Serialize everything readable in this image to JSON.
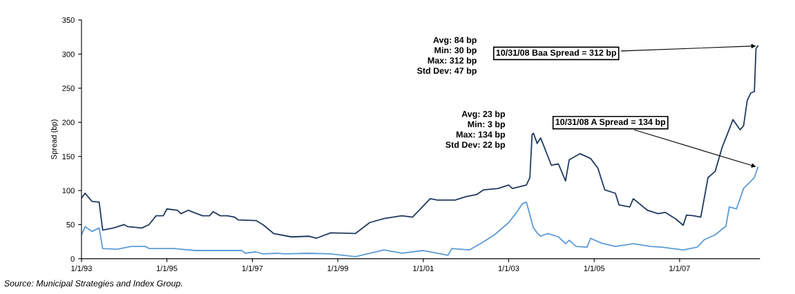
{
  "chart_data": {
    "type": "line",
    "ylabel": "Spread (bp)",
    "ylim": [
      0,
      350
    ],
    "yticks": [
      0,
      50,
      100,
      150,
      200,
      250,
      300,
      350
    ],
    "xlim": [
      "1993-01-01",
      "2008-11-15"
    ],
    "xticks": [
      {
        "value": "1993-01-01",
        "label": "1/1/93"
      },
      {
        "value": "1995-01-01",
        "label": "1/1/95"
      },
      {
        "value": "1997-01-01",
        "label": "1/1/97"
      },
      {
        "value": "1999-01-01",
        "label": "1/1/99"
      },
      {
        "value": "2001-01-01",
        "label": "1/1/01"
      },
      {
        "value": "2003-01-01",
        "label": "1/1/03"
      },
      {
        "value": "2005-01-01",
        "label": "1/1/05"
      },
      {
        "value": "2007-01-01",
        "label": "1/1/07"
      }
    ],
    "grid": false,
    "legend": false,
    "series": [
      {
        "color": "#1f3a5f",
        "x": [
          "1993-01",
          "1993-02",
          "1993-04",
          "1993-06",
          "1993-07",
          "1993-10",
          "1994-01",
          "1994-02",
          "1994-06",
          "1994-08",
          "1994-10",
          "1994-12",
          "1995-01",
          "1995-04",
          "1995-05",
          "1995-07",
          "1995-11",
          "1996-01",
          "1996-02",
          "1996-04",
          "1996-06",
          "1996-08",
          "1996-09",
          "1997-02",
          "1997-04",
          "1997-07",
          "1997-12",
          "1998-05",
          "1998-07",
          "1998-11",
          "1999-06",
          "1999-10",
          "2000-02",
          "2000-07",
          "2000-10",
          "2001-03",
          "2001-05",
          "2001-10",
          "2002-01",
          "2002-04",
          "2002-06",
          "2002-10",
          "2003-01",
          "2003-02",
          "2003-06-01",
          "2003-07-01",
          "2003-07-20",
          "2003-08",
          "2003-09",
          "2003-10",
          "2004-01",
          "2004-03",
          "2004-05",
          "2004-06",
          "2004-09",
          "2004-12",
          "2005-02",
          "2005-04",
          "2005-07",
          "2005-08",
          "2005-11",
          "2005-12",
          "2006-04",
          "2006-07",
          "2006-09",
          "2006-12",
          "2007-02",
          "2007-03",
          "2007-05",
          "2007-07",
          "2007-09",
          "2007-11",
          "2008-01",
          "2008-03",
          "2008-04",
          "2008-06",
          "2008-07",
          "2008-08",
          "2008-09",
          "2008-10-01",
          "2008-10-15",
          "2008-10-31"
        ],
        "values": [
          89,
          96,
          84,
          83,
          42,
          45,
          50,
          47,
          45,
          50,
          63,
          63,
          73,
          71,
          66,
          71,
          63,
          63,
          69,
          63,
          63,
          61,
          57,
          56,
          50,
          37,
          32,
          33,
          30,
          38,
          37,
          53,
          59,
          63,
          61,
          88,
          86,
          86,
          91,
          94,
          101,
          103,
          108,
          103,
          108,
          119,
          182,
          184,
          169,
          177,
          137,
          139,
          114,
          145,
          154,
          147,
          133,
          101,
          96,
          79,
          76,
          88,
          71,
          66,
          68,
          58,
          49,
          64,
          63,
          61,
          119,
          128,
          164,
          190,
          204,
          189,
          195,
          232,
          243,
          245,
          308,
          312
        ]
      },
      {
        "color": "#5b9bd5",
        "x": [
          "1993-01",
          "1993-02",
          "1993-04",
          "1993-06",
          "1993-07",
          "1993-11",
          "1994-03",
          "1994-07",
          "1994-08",
          "1995-03",
          "1995-09",
          "1996-03",
          "1996-10",
          "1996-11",
          "1997-02",
          "1997-04",
          "1997-08",
          "1997-10",
          "1998-05",
          "1998-11",
          "1999-06",
          "2000-02",
          "2000-07",
          "2001-01",
          "2001-08",
          "2001-09",
          "2002-02",
          "2002-06",
          "2002-09",
          "2003-01",
          "2003-03",
          "2003-05",
          "2003-06",
          "2003-08",
          "2003-09",
          "2003-10",
          "2003-12",
          "2004-03",
          "2004-05",
          "2004-06",
          "2004-08",
          "2004-11",
          "2004-12",
          "2005-03",
          "2005-07",
          "2005-12",
          "2006-05",
          "2006-08",
          "2007-02",
          "2007-06",
          "2007-08",
          "2007-11",
          "2008-02",
          "2008-03",
          "2008-05",
          "2008-07",
          "2008-10-01",
          "2008-10-31"
        ],
        "values": [
          35,
          47,
          40,
          45,
          15,
          14,
          18,
          18,
          15,
          15,
          12,
          12,
          12,
          8,
          10,
          7,
          8,
          7,
          8,
          7,
          3,
          13,
          8,
          12,
          5,
          15,
          13,
          25,
          35,
          53,
          66,
          81,
          83,
          45,
          38,
          33,
          37,
          32,
          22,
          27,
          18,
          17,
          30,
          23,
          18,
          22,
          18,
          17,
          13,
          17,
          28,
          35,
          48,
          76,
          73,
          103,
          119,
          134
        ]
      }
    ],
    "annotations": [
      "Avg: 84 bp\nMin: 30 bp\nMax: 312 bp\nStd Dev: 47 bp",
      "Avg: 23 bp\nMin: 3 bp\nMax: 134 bp\nStd Dev: 22 bp",
      {
        "text": "10/31/08 Baa Spread = 312 bp",
        "x": "2008-10-31",
        "y": 312
      },
      {
        "text": "10/31/08 A Spread = 134 bp",
        "x": "2008-10-31",
        "y": 134
      },
      "Source: Municipal Strategies and Index Group."
    ]
  }
}
